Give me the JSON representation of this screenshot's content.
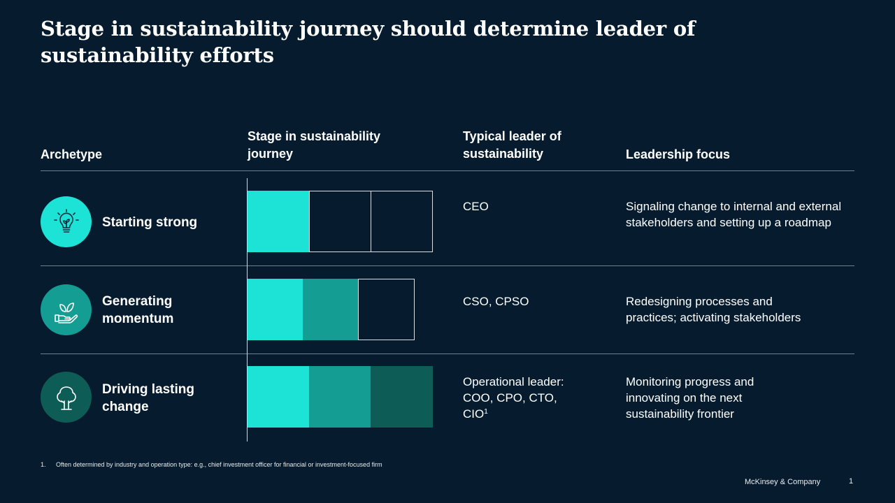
{
  "title": "Stage in sustainability journey should determine leader of sustainability efforts",
  "headers": {
    "archetype": "Archetype",
    "stage_line1": "Stage in sustainability",
    "stage_line2": "journey",
    "leader_line1": "Typical leader of",
    "leader_line2": "sustainability",
    "focus": "Leadership focus"
  },
  "colors": {
    "background": "#061c2e",
    "stage1": "#1de3d6",
    "stage2": "#149d92",
    "stage3": "#0e5c56",
    "icon1": "#1de3d6",
    "icon2": "#149d92",
    "icon3": "#0e5c56"
  },
  "rows": [
    {
      "icon": "lightbulb-plant-icon",
      "name": "Starting strong",
      "stage_filled": 1,
      "stage_total": 3,
      "leader": "CEO",
      "focus": "Signaling change to internal and external stakeholders and setting up a roadmap"
    },
    {
      "icon": "hand-leaf-icon",
      "name_line1": "Generating",
      "name_line2": "momentum",
      "stage_filled": 2,
      "stage_total": 3,
      "leader": "CSO, CPSO",
      "focus_line1": "Redesigning processes and",
      "focus_line2": "practices; activating stakeholders"
    },
    {
      "icon": "tree-icon",
      "name_line1": "Driving lasting",
      "name_line2": "change",
      "stage_filled": 3,
      "stage_total": 3,
      "leader_line1": "Operational leader:",
      "leader_line2": "COO, CPO, CTO,",
      "leader_line3": "CIO",
      "leader_sup": "1",
      "focus_line1": "Monitoring progress and",
      "focus_line2": "innovating on the next",
      "focus_line3": "sustainability frontier"
    }
  ],
  "footnote": {
    "number": "1.",
    "text": "Often determined by industry and operation type: e.g., chief investment officer for financial or investment-focused firm"
  },
  "brand": "McKinsey & Company",
  "page_number": "1"
}
